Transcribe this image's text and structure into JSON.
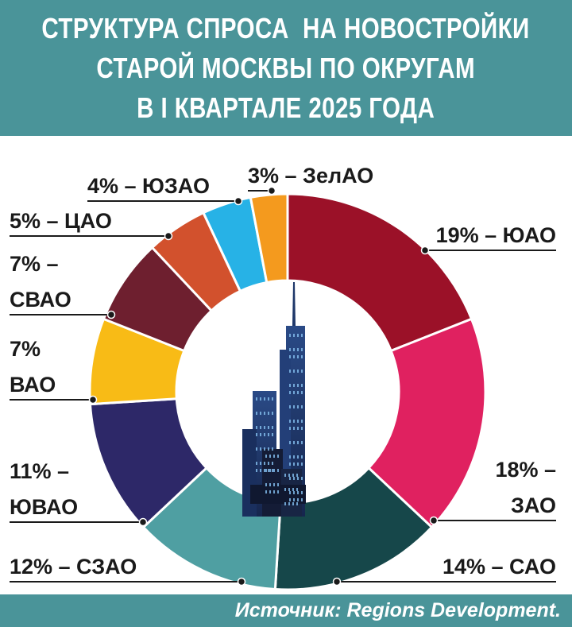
{
  "header": {
    "title_lines": [
      "СТРУКТУРА СПРОСА  НА НОВОСТРОЙКИ",
      "СТАРОЙ МОСКВЫ ПО ОКРУГАМ",
      "В I КВАРТАЛЕ 2025 ГОДА"
    ]
  },
  "footer": {
    "source": "Источник: Regions Development."
  },
  "chart_data": {
    "type": "pie",
    "title": "СТРУКТУРА СПРОСА  НА НОВОСТРОЙКИ СТАРОЙ МОСКВЫ ПО ОКРУГАМ В I КВАРТАЛЕ 2025 ГОДА",
    "donut": true,
    "categories": [
      "ЮАО",
      "ЗАО",
      "САО",
      "СЗАО",
      "ЮВАО",
      "ВАО",
      "СВАО",
      "ЦАО",
      "ЮЗАО",
      "ЗелАО"
    ],
    "values": [
      19,
      18,
      14,
      12,
      11,
      7,
      7,
      5,
      4,
      3
    ],
    "colors": [
      "#9b1128",
      "#e02160",
      "#16474a",
      "#4f9fa2",
      "#2d2868",
      "#f8bb16",
      "#6e1f2f",
      "#d2512d",
      "#27b2e6",
      "#f49a1e"
    ],
    "labels": [
      [
        "19% – ЮАО"
      ],
      [
        "18% –",
        "ЗАО"
      ],
      [
        "14% – САО"
      ],
      [
        "12% – СЗАО"
      ],
      [
        "11% –",
        "ЮВАО"
      ],
      [
        "7%",
        "ВАО"
      ],
      [
        "7% –",
        "СВАО"
      ],
      [
        "5% – ЦАО"
      ],
      [
        "4% – ЮЗАО"
      ],
      [
        "3% – ЗелАО"
      ]
    ]
  }
}
